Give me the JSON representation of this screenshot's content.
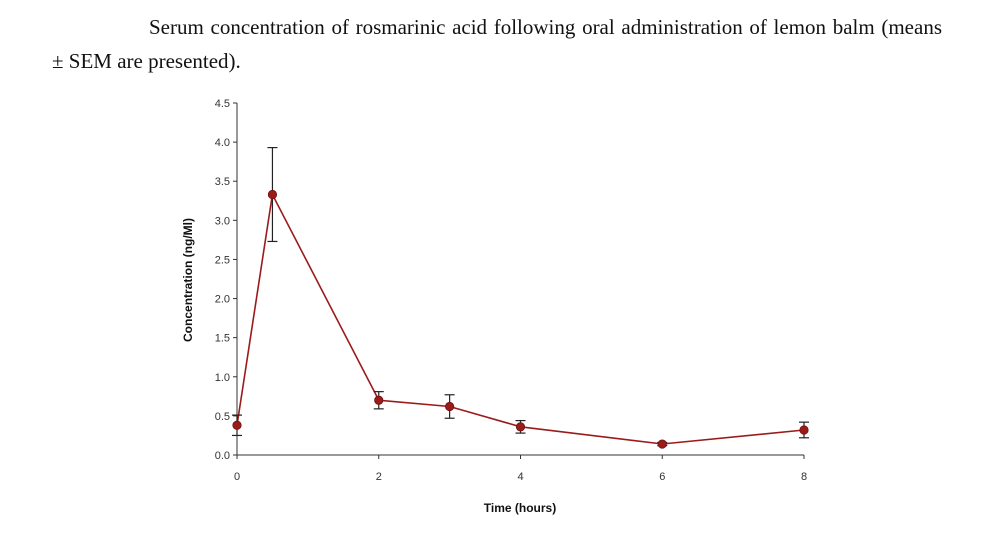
{
  "caption": "Serum concentration of rosmarinic acid following oral administration of lemon balm (means ± SEM are presented).",
  "chart_data": {
    "type": "line",
    "xlabel": "Time (hours)",
    "ylabel": "Concentration (ng/Ml)",
    "xlim": [
      0,
      8
    ],
    "ylim": [
      0,
      4.5
    ],
    "x_ticks": [
      "0",
      "2",
      "4",
      "6",
      "8"
    ],
    "x_tick_values": [
      0,
      2,
      4,
      6,
      8
    ],
    "y_ticks": [
      "0.0",
      "0.5",
      "1.0",
      "1.5",
      "2.0",
      "2.5",
      "3.0",
      "3.5",
      "4.0",
      "4.5"
    ],
    "y_tick_values": [
      0,
      0.5,
      1,
      1.5,
      2,
      2.5,
      3,
      3.5,
      4,
      4.5
    ],
    "grid": false,
    "legend": false,
    "series": [
      {
        "x": [
          0,
          0.5,
          2,
          3,
          4,
          6,
          8
        ],
        "y": [
          0.38,
          3.33,
          0.7,
          0.62,
          0.36,
          0.14,
          0.32
        ],
        "error": [
          0.13,
          0.6,
          0.11,
          0.15,
          0.08,
          0.02,
          0.1
        ],
        "color": "#9b1b1b"
      }
    ]
  }
}
